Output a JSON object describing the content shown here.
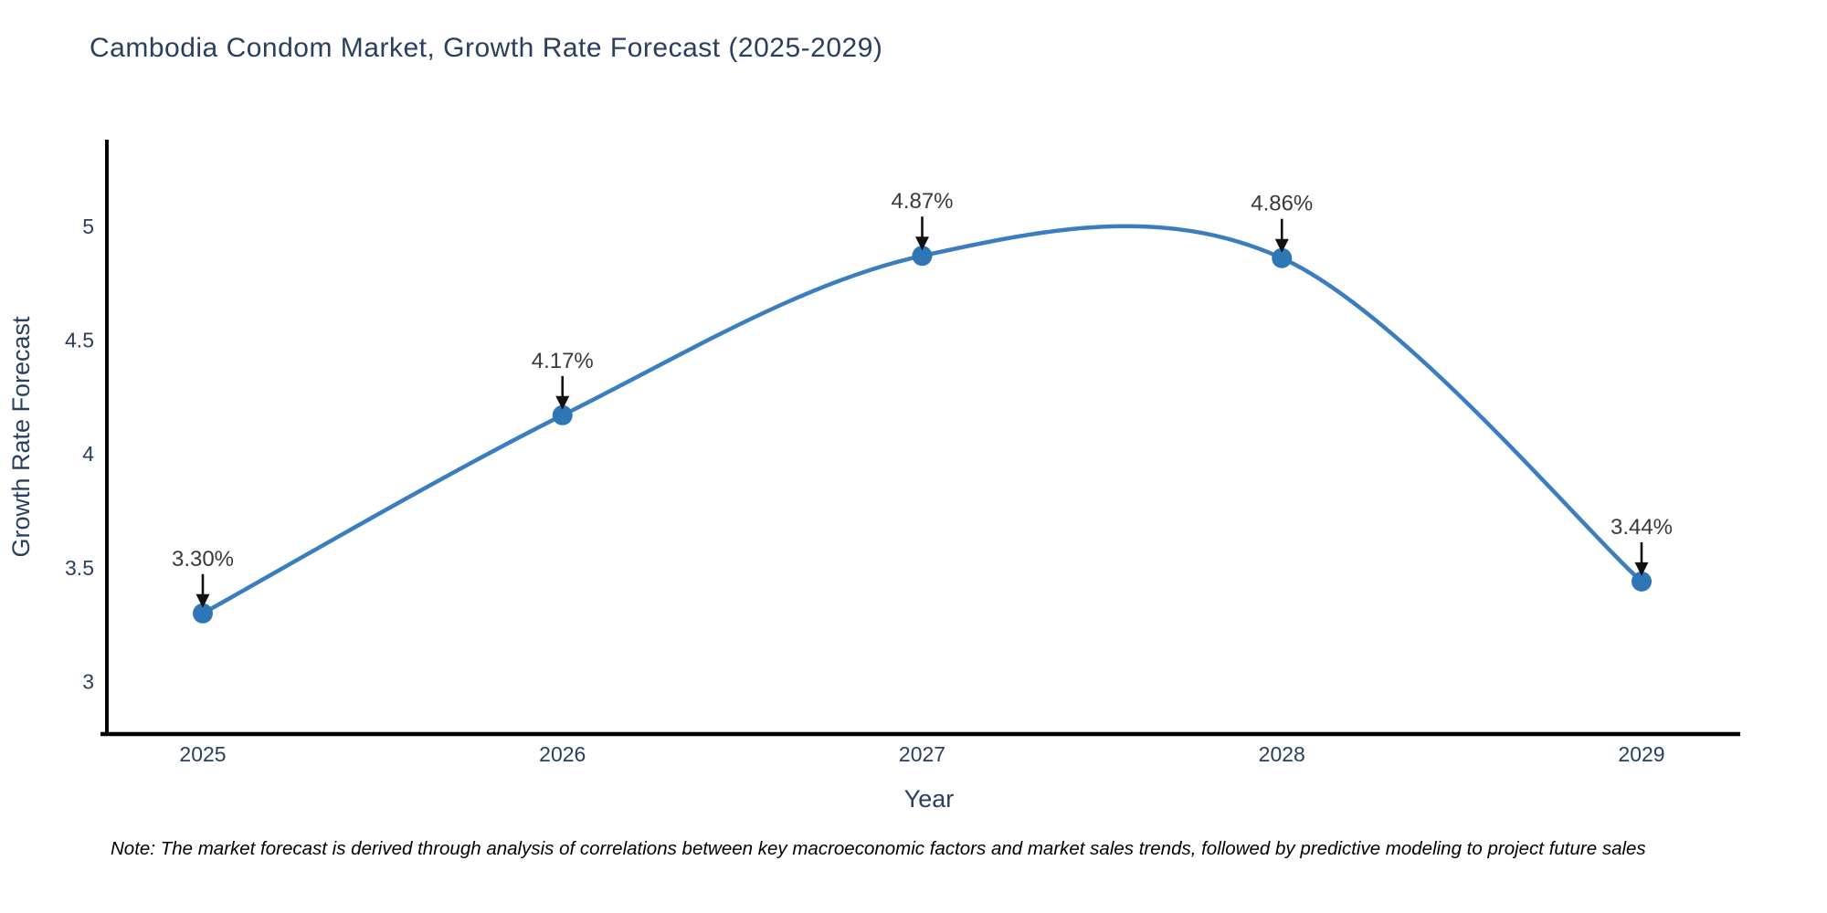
{
  "page": {
    "title": "Cambodia Condom Market, Growth Rate Forecast (2025-2029)",
    "note": "Note: The market forecast is derived through analysis of correlations between key macroeconomic factors and market sales trends, followed by predictive modeling to project future sales"
  },
  "chart_data": {
    "type": "line",
    "title": "Cambodia Condom Market, Growth Rate Forecast (2025-2029)",
    "xlabel": "Year",
    "ylabel": "Growth Rate Forecast",
    "x": [
      "2025",
      "2026",
      "2027",
      "2028",
      "2029"
    ],
    "values": [
      3.3,
      4.17,
      4.87,
      4.86,
      3.44
    ],
    "point_labels": [
      "3.30%",
      "4.17%",
      "4.87%",
      "4.86%",
      "3.44%"
    ],
    "yticks": {
      "values": [
        3,
        3.5,
        4,
        4.5,
        5
      ],
      "labels": [
        "3",
        "3.5",
        "4",
        "4.5",
        "5"
      ]
    },
    "ylim": [
      2.77,
      5.38
    ],
    "line_shape": "spline",
    "grid": false,
    "legend": "none",
    "annotations_have_arrows": true,
    "colors": {
      "line": "#3a7ebf",
      "marker": "#2e76b6",
      "axis": "#000000",
      "axis_text": "#2a3f5f",
      "annotation_text": "#3a3a3a",
      "annotation_arrow": "#111111",
      "title": "#2a3f5f",
      "note": "#000000",
      "background": "#ffffff"
    }
  }
}
